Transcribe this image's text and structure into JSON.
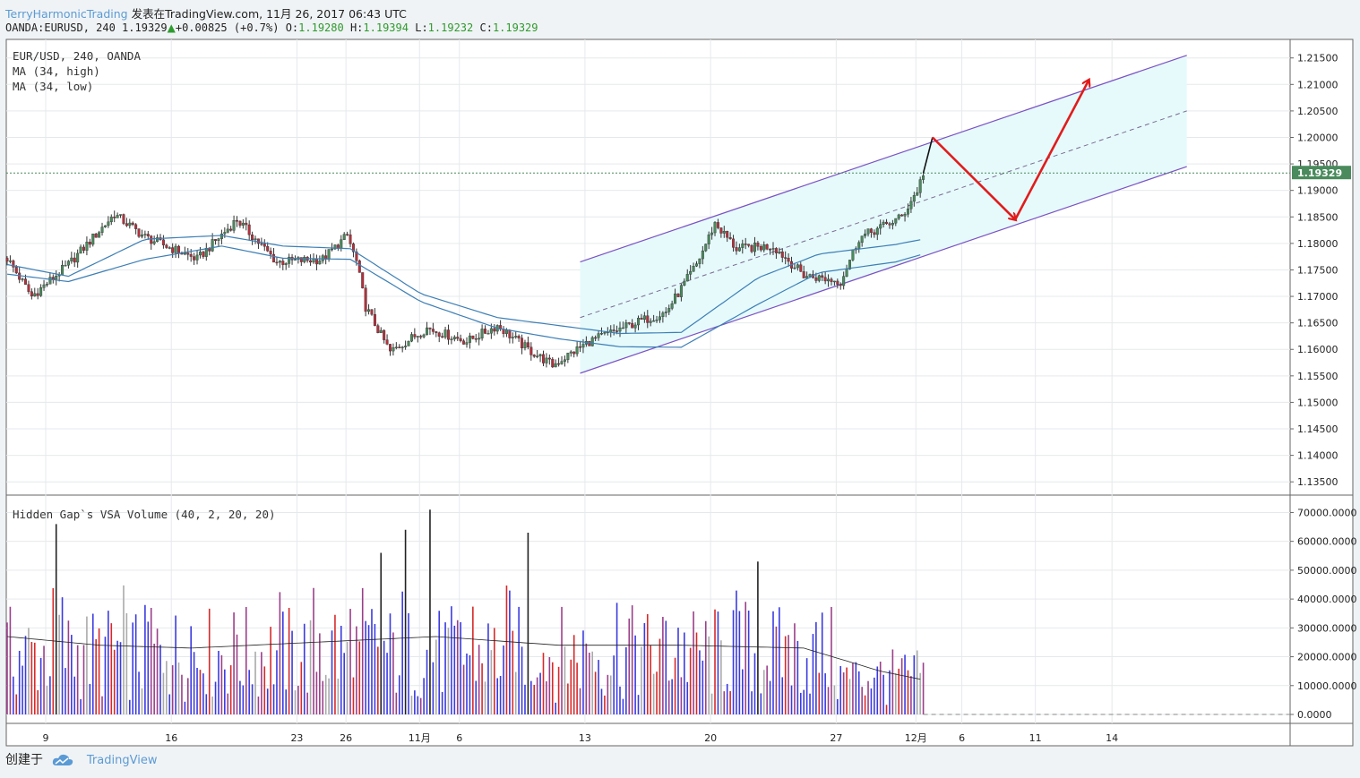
{
  "header": {
    "author": "TerryHarmonicTrading",
    "published_text": "发表在TradingView.com, 11月 26, 2017 06:43 UTC",
    "symbol_info": "OANDA:EURUSD, 240 1.19329",
    "change": "+0.00825 (+0.7%)",
    "ohlc": {
      "o_label": "O:",
      "o": "1.19280",
      "h_label": "H:",
      "h": "1.19394",
      "l_label": "L:",
      "l": "1.19232",
      "c_label": "C:",
      "c": "1.19329"
    }
  },
  "legend": {
    "line1": "EUR/USD, 240, OANDA",
    "line2": "MA (34, high)",
    "line3": "MA (34, low)",
    "volume_title": "Hidden Gap`s VSA Volume (40, 2, 20, 20)"
  },
  "footer": {
    "created_with": "创建于",
    "brand": "TradingView"
  },
  "colors": {
    "up": "#4a8a5c",
    "down": "#b5303c",
    "ma": "#3d7fb5",
    "channel_line": "#7b52c4",
    "channel_fill": "#e6fafc",
    "arrow": "#e11b1b",
    "vol_blue": "#3a3ae0",
    "vol_red": "#d62a2a",
    "vol_purple": "#9b3f8a",
    "vol_black": "#222222",
    "vol_gray": "#aaaaaa",
    "price_badge": "#4a8a5c",
    "grid": "#e6e9ec"
  },
  "chart_data": {
    "type": "candlestick",
    "symbol": "EUR/USD",
    "timeframe": "240",
    "last_price": "1.19329",
    "price_axis": {
      "ylim": [
        1.1325,
        1.2185
      ],
      "ticks": [
        "1.21500",
        "1.21000",
        "1.20500",
        "1.20000",
        "1.19500",
        "1.19000",
        "1.18500",
        "1.18000",
        "1.17500",
        "1.17000",
        "1.16500",
        "1.16000",
        "1.15500",
        "1.15000",
        "1.14500",
        "1.14000",
        "1.13500"
      ]
    },
    "volume_axis": {
      "ylim": [
        0,
        72000
      ],
      "ticks": [
        "70000.0000",
        "60000.0000",
        "50000.0000",
        "40000.0000",
        "30000.0000",
        "20000.0000",
        "10000.0000",
        "0.0000"
      ]
    },
    "time_axis": {
      "ticks": [
        "9",
        "16",
        "23",
        "26",
        "11月",
        "6",
        "13",
        "20",
        "27",
        "12月",
        "6",
        "11",
        "14"
      ],
      "positions": [
        0,
        41,
        82,
        98,
        122,
        135,
        176,
        217,
        258,
        284,
        299,
        323,
        348
      ]
    },
    "ohlc_key_points": [
      {
        "t": 0,
        "price": 1.1772
      },
      {
        "t": 8,
        "price": 1.17
      },
      {
        "t": 20,
        "price": 1.176
      },
      {
        "t": 35,
        "price": 1.1855
      },
      {
        "t": 45,
        "price": 1.1812
      },
      {
        "t": 62,
        "price": 1.177
      },
      {
        "t": 75,
        "price": 1.1845
      },
      {
        "t": 88,
        "price": 1.1765
      },
      {
        "t": 103,
        "price": 1.177
      },
      {
        "t": 111,
        "price": 1.1815
      },
      {
        "t": 114,
        "price": 1.1765
      },
      {
        "t": 117,
        "price": 1.168
      },
      {
        "t": 125,
        "price": 1.1595
      },
      {
        "t": 137,
        "price": 1.164
      },
      {
        "t": 150,
        "price": 1.1615
      },
      {
        "t": 160,
        "price": 1.1645
      },
      {
        "t": 170,
        "price": 1.16
      },
      {
        "t": 178,
        "price": 1.157
      },
      {
        "t": 190,
        "price": 1.1615
      },
      {
        "t": 205,
        "price": 1.165
      },
      {
        "t": 215,
        "price": 1.167
      },
      {
        "t": 225,
        "price": 1.176
      },
      {
        "t": 231,
        "price": 1.1838
      },
      {
        "t": 238,
        "price": 1.179
      },
      {
        "t": 250,
        "price": 1.1795
      },
      {
        "t": 260,
        "price": 1.174
      },
      {
        "t": 272,
        "price": 1.1728
      },
      {
        "t": 278,
        "price": 1.181
      },
      {
        "t": 292,
        "price": 1.185
      },
      {
        "t": 297,
        "price": 1.19
      },
      {
        "t": 299,
        "price": 1.1933
      }
    ],
    "ma_high": [
      {
        "t": 0,
        "price": 1.176
      },
      {
        "t": 20,
        "price": 1.1738
      },
      {
        "t": 45,
        "price": 1.1808
      },
      {
        "t": 70,
        "price": 1.1815
      },
      {
        "t": 90,
        "price": 1.1795
      },
      {
        "t": 112,
        "price": 1.179
      },
      {
        "t": 135,
        "price": 1.1705
      },
      {
        "t": 160,
        "price": 1.166
      },
      {
        "t": 180,
        "price": 1.1645
      },
      {
        "t": 200,
        "price": 1.163
      },
      {
        "t": 220,
        "price": 1.1632
      },
      {
        "t": 245,
        "price": 1.1735
      },
      {
        "t": 265,
        "price": 1.178
      },
      {
        "t": 290,
        "price": 1.1798
      },
      {
        "t": 299,
        "price": 1.1808
      }
    ],
    "ma_low": [
      {
        "t": 0,
        "price": 1.1742
      },
      {
        "t": 20,
        "price": 1.1728
      },
      {
        "t": 45,
        "price": 1.177
      },
      {
        "t": 70,
        "price": 1.1795
      },
      {
        "t": 90,
        "price": 1.1772
      },
      {
        "t": 112,
        "price": 1.177
      },
      {
        "t": 135,
        "price": 1.169
      },
      {
        "t": 160,
        "price": 1.164
      },
      {
        "t": 180,
        "price": 1.162
      },
      {
        "t": 200,
        "price": 1.1605
      },
      {
        "t": 220,
        "price": 1.1604
      },
      {
        "t": 245,
        "price": 1.1685
      },
      {
        "t": 265,
        "price": 1.1745
      },
      {
        "t": 290,
        "price": 1.1765
      },
      {
        "t": 299,
        "price": 1.178
      }
    ],
    "channel": {
      "upper_start": {
        "t": 187,
        "price": 1.1765
      },
      "upper_end": {
        "t": 385,
        "price": 1.2155
      },
      "lower_start": {
        "t": 187,
        "price": 1.1555
      },
      "lower_end": {
        "t": 385,
        "price": 1.1945
      },
      "mid_start": {
        "t": 187,
        "price": 1.166
      },
      "mid_end": {
        "t": 385,
        "price": 1.205
      }
    },
    "projection": [
      {
        "t": 299,
        "price": 1.1933
      },
      {
        "t": 302,
        "price": 1.2
      },
      {
        "t": 329,
        "price": 1.1845
      },
      {
        "t": 353,
        "price": 1.2108
      }
    ],
    "volume_avg_points": [
      {
        "t": 0,
        "price": 27000
      },
      {
        "t": 30,
        "price": 24000
      },
      {
        "t": 60,
        "price": 23000
      },
      {
        "t": 100,
        "price": 25000
      },
      {
        "t": 140,
        "price": 27000
      },
      {
        "t": 180,
        "price": 24000
      },
      {
        "t": 220,
        "price": 24000
      },
      {
        "t": 260,
        "price": 23000
      },
      {
        "t": 285,
        "price": 15000
      },
      {
        "t": 299,
        "price": 12000
      }
    ],
    "volume_spikes": [
      {
        "t": 16,
        "value": 66000
      },
      {
        "t": 122,
        "value": 56000
      },
      {
        "t": 130,
        "value": 64000
      },
      {
        "t": 138,
        "value": 71000
      },
      {
        "t": 170,
        "value": 63000
      },
      {
        "t": 245,
        "value": 53000
      }
    ]
  }
}
